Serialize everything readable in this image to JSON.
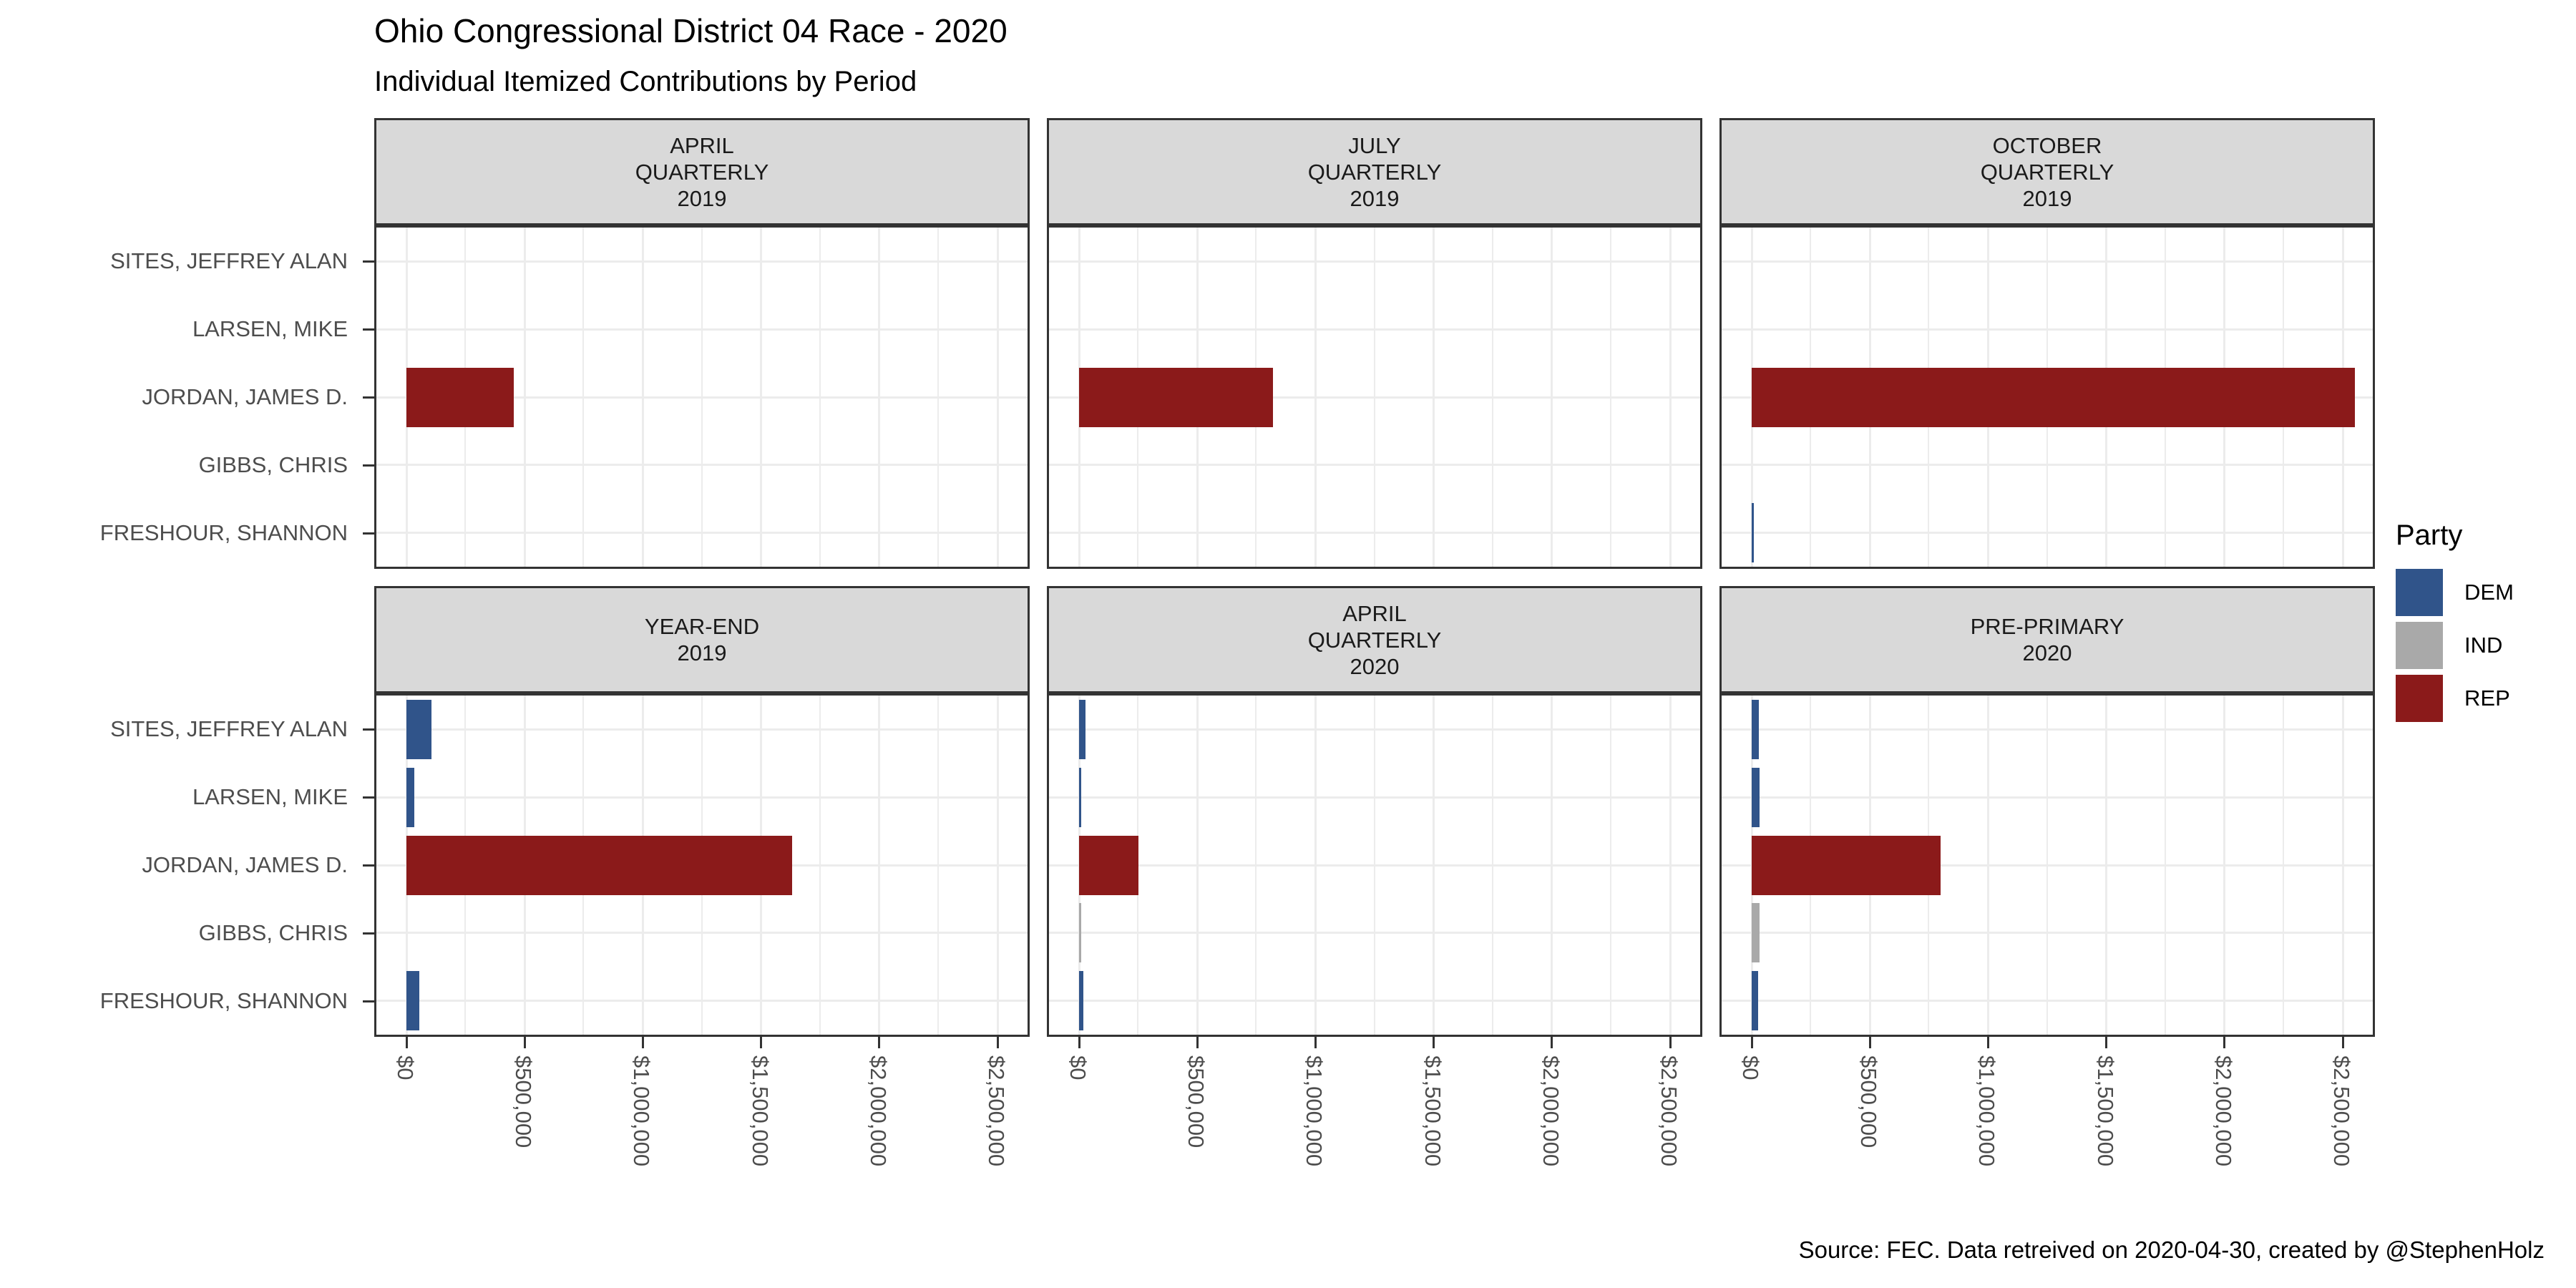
{
  "title": "Ohio Congressional District 04 Race - 2020",
  "subtitle": "Individual Itemized Contributions by Period",
  "caption": "Source: FEC. Data retreived on 2020-04-30, created by @StephenHolz",
  "legend": {
    "title": "Party",
    "entries": [
      {
        "label": "DEM",
        "color": "#30548A"
      },
      {
        "label": "IND",
        "color": "#A9A9A9"
      },
      {
        "label": "REP",
        "color": "#8B1A1A"
      }
    ]
  },
  "axis": {
    "x_tick_labels": [
      "$0",
      "$500,000",
      "$1,000,000",
      "$1,500,000",
      "$2,000,000",
      "$2,500,000"
    ]
  },
  "candidates": [
    {
      "name": "SITES, JEFFREY ALAN",
      "party": "DEM"
    },
    {
      "name": "LARSEN, MIKE",
      "party": "DEM"
    },
    {
      "name": "JORDAN, JAMES D.",
      "party": "REP"
    },
    {
      "name": "GIBBS, CHRIS",
      "party": "IND"
    },
    {
      "name": "FRESHOUR, SHANNON",
      "party": "DEM"
    }
  ],
  "chart_data": {
    "type": "bar",
    "orientation": "horizontal",
    "title": "Ohio Congressional District 04 Race - 2020",
    "subtitle": "Individual Itemized Contributions by Period",
    "categories": [
      "SITES, JEFFREY ALAN",
      "LARSEN, MIKE",
      "JORDAN, JAMES D.",
      "GIBBS, CHRIS",
      "FRESHOUR, SHANNON"
    ],
    "category_parties": [
      "DEM",
      "DEM",
      "REP",
      "IND",
      "DEM"
    ],
    "xlabel": "",
    "ylabel": "",
    "xlim": [
      0,
      2650000
    ],
    "x_tick_step": 500000,
    "grid": "on",
    "legend_position": "right",
    "facets": [
      {
        "label": "APRIL QUARTERLY 2019",
        "label_lines": [
          "APRIL",
          "QUARTERLY",
          "2019"
        ],
        "values": [
          0,
          0,
          455000,
          0,
          0
        ]
      },
      {
        "label": "JULY QUARTERLY 2019",
        "label_lines": [
          "JULY",
          "QUARTERLY",
          "2019"
        ],
        "values": [
          0,
          0,
          820000,
          0,
          0
        ]
      },
      {
        "label": "OCTOBER QUARTERLY 2019",
        "label_lines": [
          "OCTOBER",
          "QUARTERLY",
          "2019"
        ],
        "values": [
          0,
          0,
          2550000,
          0,
          10000
        ]
      },
      {
        "label": "YEAR-END 2019",
        "label_lines": [
          "YEAR-END",
          "2019"
        ],
        "values": [
          105000,
          33000,
          1630000,
          0,
          55000
        ]
      },
      {
        "label": "APRIL QUARTERLY 2020",
        "label_lines": [
          "APRIL",
          "QUARTERLY",
          "2020"
        ],
        "values": [
          28000,
          6000,
          250000,
          7000,
          18000
        ]
      },
      {
        "label": "PRE-PRIMARY 2020",
        "label_lines": [
          "PRE-PRIMARY",
          "2020"
        ],
        "values": [
          30000,
          32000,
          800000,
          33000,
          27000
        ]
      }
    ]
  },
  "colors": {
    "strip_bg": "#D9D9D9",
    "panel_border": "#333333",
    "gridline": "#ECECEC",
    "axis_text": "#4D4D4D",
    "background": "#FFFFFF"
  }
}
